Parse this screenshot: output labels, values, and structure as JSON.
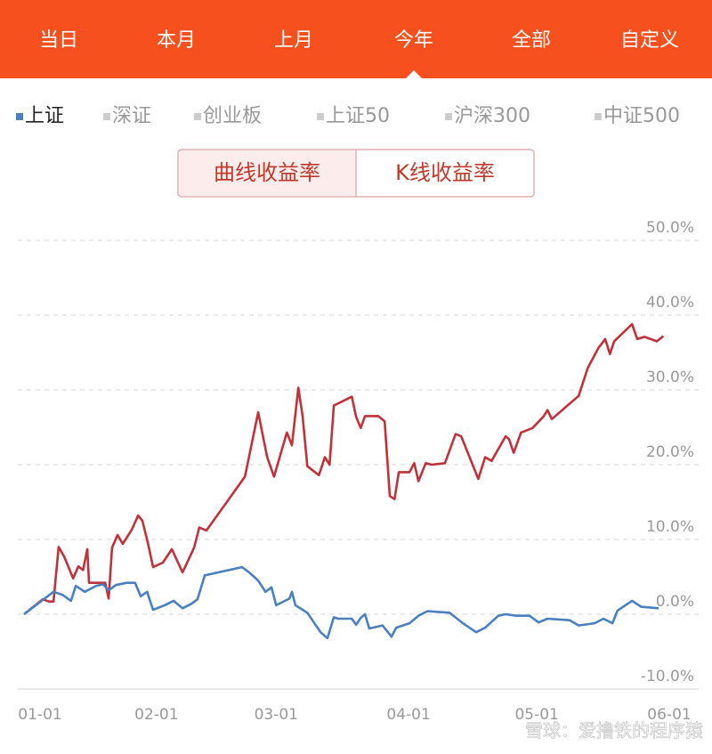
{
  "tabs": [
    "当日",
    "本月",
    "上月",
    "今年",
    "全部",
    "自定义"
  ],
  "selected_tab": 3,
  "toggle": [
    "曲线收益率",
    "K线收益率"
  ],
  "selected_toggle": 0,
  "watermark": "雪球：爱撸铁的程序猿",
  "chart_data": {
    "type": "line",
    "inactive_legend": [
      "深证",
      "创业板",
      "上证50",
      "沪深300",
      "中证500"
    ],
    "legend_inactive_color": "#cccccc",
    "series": [
      {
        "color": "#c0313a",
        "x": [
          0,
          4.4,
          5.8,
          6.9,
          8.1,
          9.4,
          11.5,
          12.7,
          13.8,
          14.8,
          15.2,
          17.3,
          19.0,
          19.8,
          20.6,
          21.9,
          23.1,
          25.2,
          26.7,
          27.7,
          29.0,
          30.2,
          32.5,
          34.6,
          37.1,
          39.8,
          41.0,
          42.7,
          51.7,
          54.8,
          56.9,
          58.5,
          61.5,
          62.7,
          64.2,
          65.2,
          66.3,
          69.0,
          70.4,
          71.5,
          72.5,
          76.7,
          77.7,
          78.8,
          79.8,
          82.9,
          84.4,
          85.6,
          86.7,
          87.7,
          90.2,
          91.3,
          92.3,
          94.0,
          95.4,
          98.5,
          101.0,
          102.3,
          106.3,
          107.9,
          109.4,
          112.7,
          113.5,
          114.6,
          116.3,
          119.0,
          121.5,
          122.5,
          123.5,
          129.8,
          131.9,
          134.4,
          136.0,
          137.1,
          138.1,
          142.3,
          143.5,
          145.2,
          148.1,
          149.6
        ],
        "values": [
          0,
          2.0,
          1.7,
          1.7,
          9.0,
          7.7,
          4.8,
          6.4,
          5.9,
          8.7,
          4.2,
          4.2,
          4.2,
          2.1,
          8.9,
          10.6,
          9.4,
          11.3,
          13.2,
          12.5,
          9.5,
          6.3,
          6.9,
          8.7,
          5.6,
          8.9,
          11.6,
          11.2,
          18.4,
          27.0,
          21.0,
          18.4,
          24.3,
          22.6,
          30.3,
          26.5,
          19.8,
          18.6,
          21.0,
          20.0,
          27.9,
          29.1,
          26.4,
          24.9,
          26.5,
          26.5,
          25.8,
          15.8,
          15.4,
          19.0,
          19.0,
          20.2,
          17.8,
          20.2,
          20.0,
          20.2,
          24.1,
          23.8,
          18.1,
          21.0,
          20.5,
          23.8,
          23.4,
          21.6,
          24.3,
          24.9,
          26.4,
          27.3,
          26.1,
          29.2,
          32.9,
          35.6,
          36.8,
          34.8,
          36.5,
          38.8,
          36.8,
          37.1,
          36.5,
          37.2
        ]
      },
      {
        "name": "上证",
        "color": "#4a7fc0",
        "x": [
          0,
          6.9,
          9.0,
          11.0,
          12.1,
          14.2,
          16.9,
          18.5,
          19.8,
          21.5,
          24.0,
          26.0,
          27.3,
          28.8,
          30.2,
          32.9,
          35.0,
          37.1,
          39.2,
          40.6,
          42.3,
          51.0,
          52.7,
          54.8,
          56.5,
          57.9,
          59.0,
          62.1,
          62.7,
          63.5,
          66.3,
          69.4,
          71.0,
          72.5,
          73.5,
          76.7,
          77.7,
          78.8,
          79.8,
          80.8,
          83.9,
          86.0,
          87.1,
          90.2,
          92.3,
          94.4,
          99.6,
          102.7,
          105.8,
          107.9,
          111.0,
          112.7,
          115.2,
          118.3,
          120.4,
          122.5,
          127.7,
          129.8,
          133.5,
          135.6,
          137.7,
          138.9,
          142.3,
          144.4,
          148.5
        ],
        "values": [
          0,
          3.0,
          2.6,
          1.8,
          3.8,
          3.0,
          3.8,
          4.0,
          3.2,
          3.9,
          4.2,
          4.2,
          2.4,
          3.0,
          0.6,
          1.2,
          1.8,
          0.8,
          1.4,
          2.0,
          5.2,
          6.3,
          5.6,
          4.5,
          3.0,
          3.6,
          1.2,
          2.1,
          3.0,
          1.2,
          0.2,
          -2.4,
          -3.2,
          -0.4,
          -0.6,
          -0.6,
          -1.4,
          -0.5,
          0,
          -1.9,
          -1.5,
          -3.0,
          -1.8,
          -1.2,
          -0.2,
          0.4,
          0.2,
          -1.2,
          -2.4,
          -1.8,
          -0.2,
          0,
          -0.2,
          -0.2,
          -1.1,
          -0.6,
          -0.8,
          -1.5,
          -1.2,
          -0.6,
          -1.2,
          0.5,
          1.8,
          1.0,
          0.8
        ]
      }
    ],
    "xlim": [
      0,
      151
    ],
    "xticks": [
      {
        "value": 0,
        "label": "01-01"
      },
      {
        "value": 31,
        "label": "02-01"
      },
      {
        "value": 59,
        "label": "03-01"
      },
      {
        "value": 90,
        "label": "04-01"
      },
      {
        "value": 120,
        "label": "05-01"
      },
      {
        "value": 151,
        "label": "06-01"
      }
    ],
    "ylim": [
      -10,
      50
    ],
    "yticks": [
      {
        "value": -10,
        "label": "-10.0%"
      },
      {
        "value": 0,
        "label": "0.0%"
      },
      {
        "value": 10,
        "label": "10.0%"
      },
      {
        "value": 20,
        "label": "20.0%"
      },
      {
        "value": 30,
        "label": "30.0%"
      },
      {
        "value": 40,
        "label": "40.0%"
      },
      {
        "value": 50,
        "label": "50.0%"
      }
    ],
    "grid": true
  }
}
